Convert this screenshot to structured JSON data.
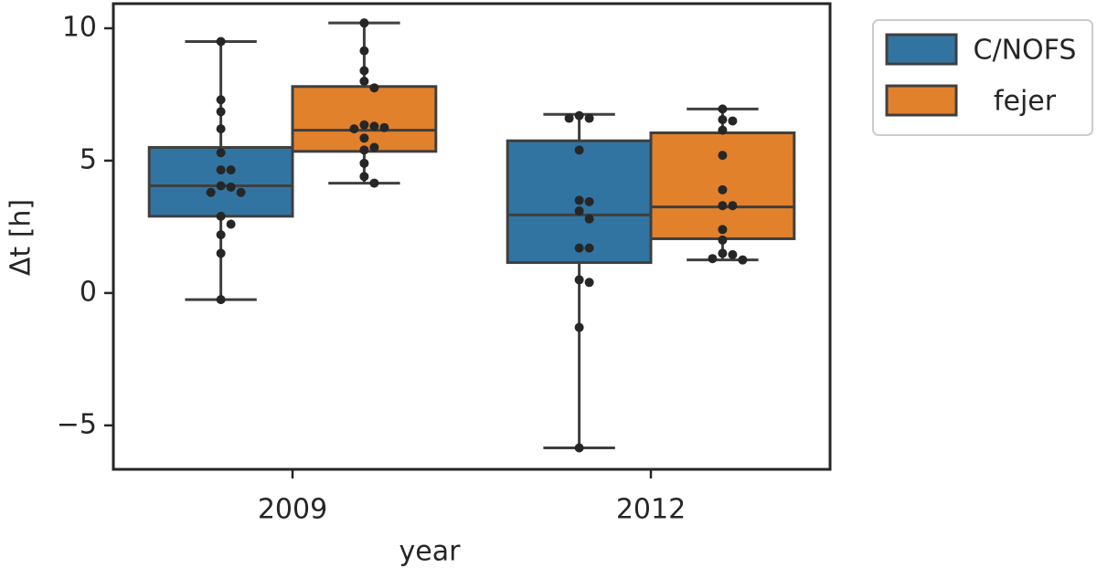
{
  "chart_data": {
    "type": "box",
    "xlabel": "year",
    "ylabel": "Δt [h]",
    "categories": [
      "2009",
      "2012"
    ],
    "ylim": [
      -6.66,
      10.93
    ],
    "yticks": [
      {
        "value": -5,
        "label": "−5"
      },
      0,
      5,
      10
    ],
    "legend": "upper right outside",
    "series": [
      {
        "name": "C/NOFS",
        "color": "#3274a1",
        "boxes": [
          {
            "whislo": -0.25,
            "q1": 2.9,
            "med": 4.05,
            "q3": 5.5,
            "whishi": 9.5
          },
          {
            "whislo": -5.85,
            "q1": 1.15,
            "med": 2.95,
            "q3": 5.75,
            "whishi": 6.75
          }
        ],
        "points": [
          [
            9.5,
            7.3,
            6.85,
            6.2,
            5.3,
            4.65,
            4.65,
            4.05,
            4.0,
            3.8,
            3.8,
            2.9,
            2.6,
            2.2,
            1.5,
            -0.25
          ],
          [
            6.7,
            6.6,
            6.6,
            5.4,
            3.5,
            3.45,
            3.1,
            2.8,
            1.7,
            1.7,
            0.5,
            0.4,
            -1.3,
            -5.85
          ]
        ]
      },
      {
        "name": "fejer",
        "color": "#e1812c",
        "boxes": [
          {
            "whislo": 4.15,
            "q1": 5.35,
            "med": 6.15,
            "q3": 7.8,
            "whishi": 10.2
          },
          {
            "whislo": 1.25,
            "q1": 2.05,
            "med": 3.25,
            "q3": 6.05,
            "whishi": 6.95
          }
        ],
        "points": [
          [
            10.2,
            9.15,
            8.4,
            8.0,
            7.75,
            6.35,
            6.3,
            6.2,
            6.25,
            5.85,
            5.5,
            5.4,
            4.9,
            4.4,
            4.15
          ],
          [
            6.95,
            6.55,
            6.5,
            6.15,
            5.2,
            3.9,
            3.3,
            3.3,
            2.4,
            2.0,
            1.5,
            1.45,
            1.3,
            1.25
          ]
        ]
      }
    ]
  }
}
